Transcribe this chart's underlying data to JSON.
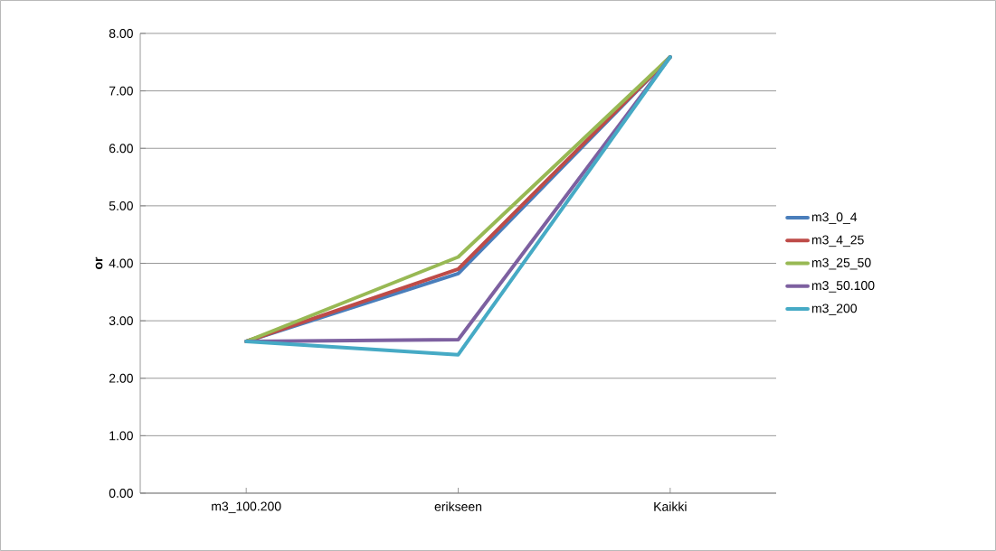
{
  "chart_data": {
    "type": "line",
    "ylabel": "or",
    "categories": [
      "m3_100.200",
      "erikseen",
      "Kaikki"
    ],
    "series": [
      {
        "name": "m3_0_4",
        "color": "#4a7ebb",
        "values": [
          2.64,
          3.82,
          7.59
        ]
      },
      {
        "name": "m3_4_25",
        "color": "#be4b48",
        "values": [
          2.64,
          3.9,
          7.59
        ]
      },
      {
        "name": "m3_25_50",
        "color": "#98b954",
        "values": [
          2.64,
          4.11,
          7.59
        ]
      },
      {
        "name": "m3_50.100",
        "color": "#7d60a0",
        "values": [
          2.64,
          2.67,
          7.59
        ]
      },
      {
        "name": "m3_200",
        "color": "#46aac5",
        "values": [
          2.64,
          2.41,
          7.59
        ]
      }
    ],
    "ylim": [
      0,
      8
    ],
    "yticks": [
      {
        "value": 0,
        "label": "0.00"
      },
      {
        "value": 1,
        "label": "1.00"
      },
      {
        "value": 2,
        "label": "2.00"
      },
      {
        "value": 3,
        "label": "3.00"
      },
      {
        "value": 4,
        "label": "4.00"
      },
      {
        "value": 5,
        "label": "5.00"
      },
      {
        "value": 6,
        "label": "6.00"
      },
      {
        "value": 7,
        "label": "7.00"
      },
      {
        "value": 8,
        "label": "8.00"
      }
    ],
    "grid": "y",
    "legend": "right",
    "marker": "none",
    "line_style": "solid"
  }
}
